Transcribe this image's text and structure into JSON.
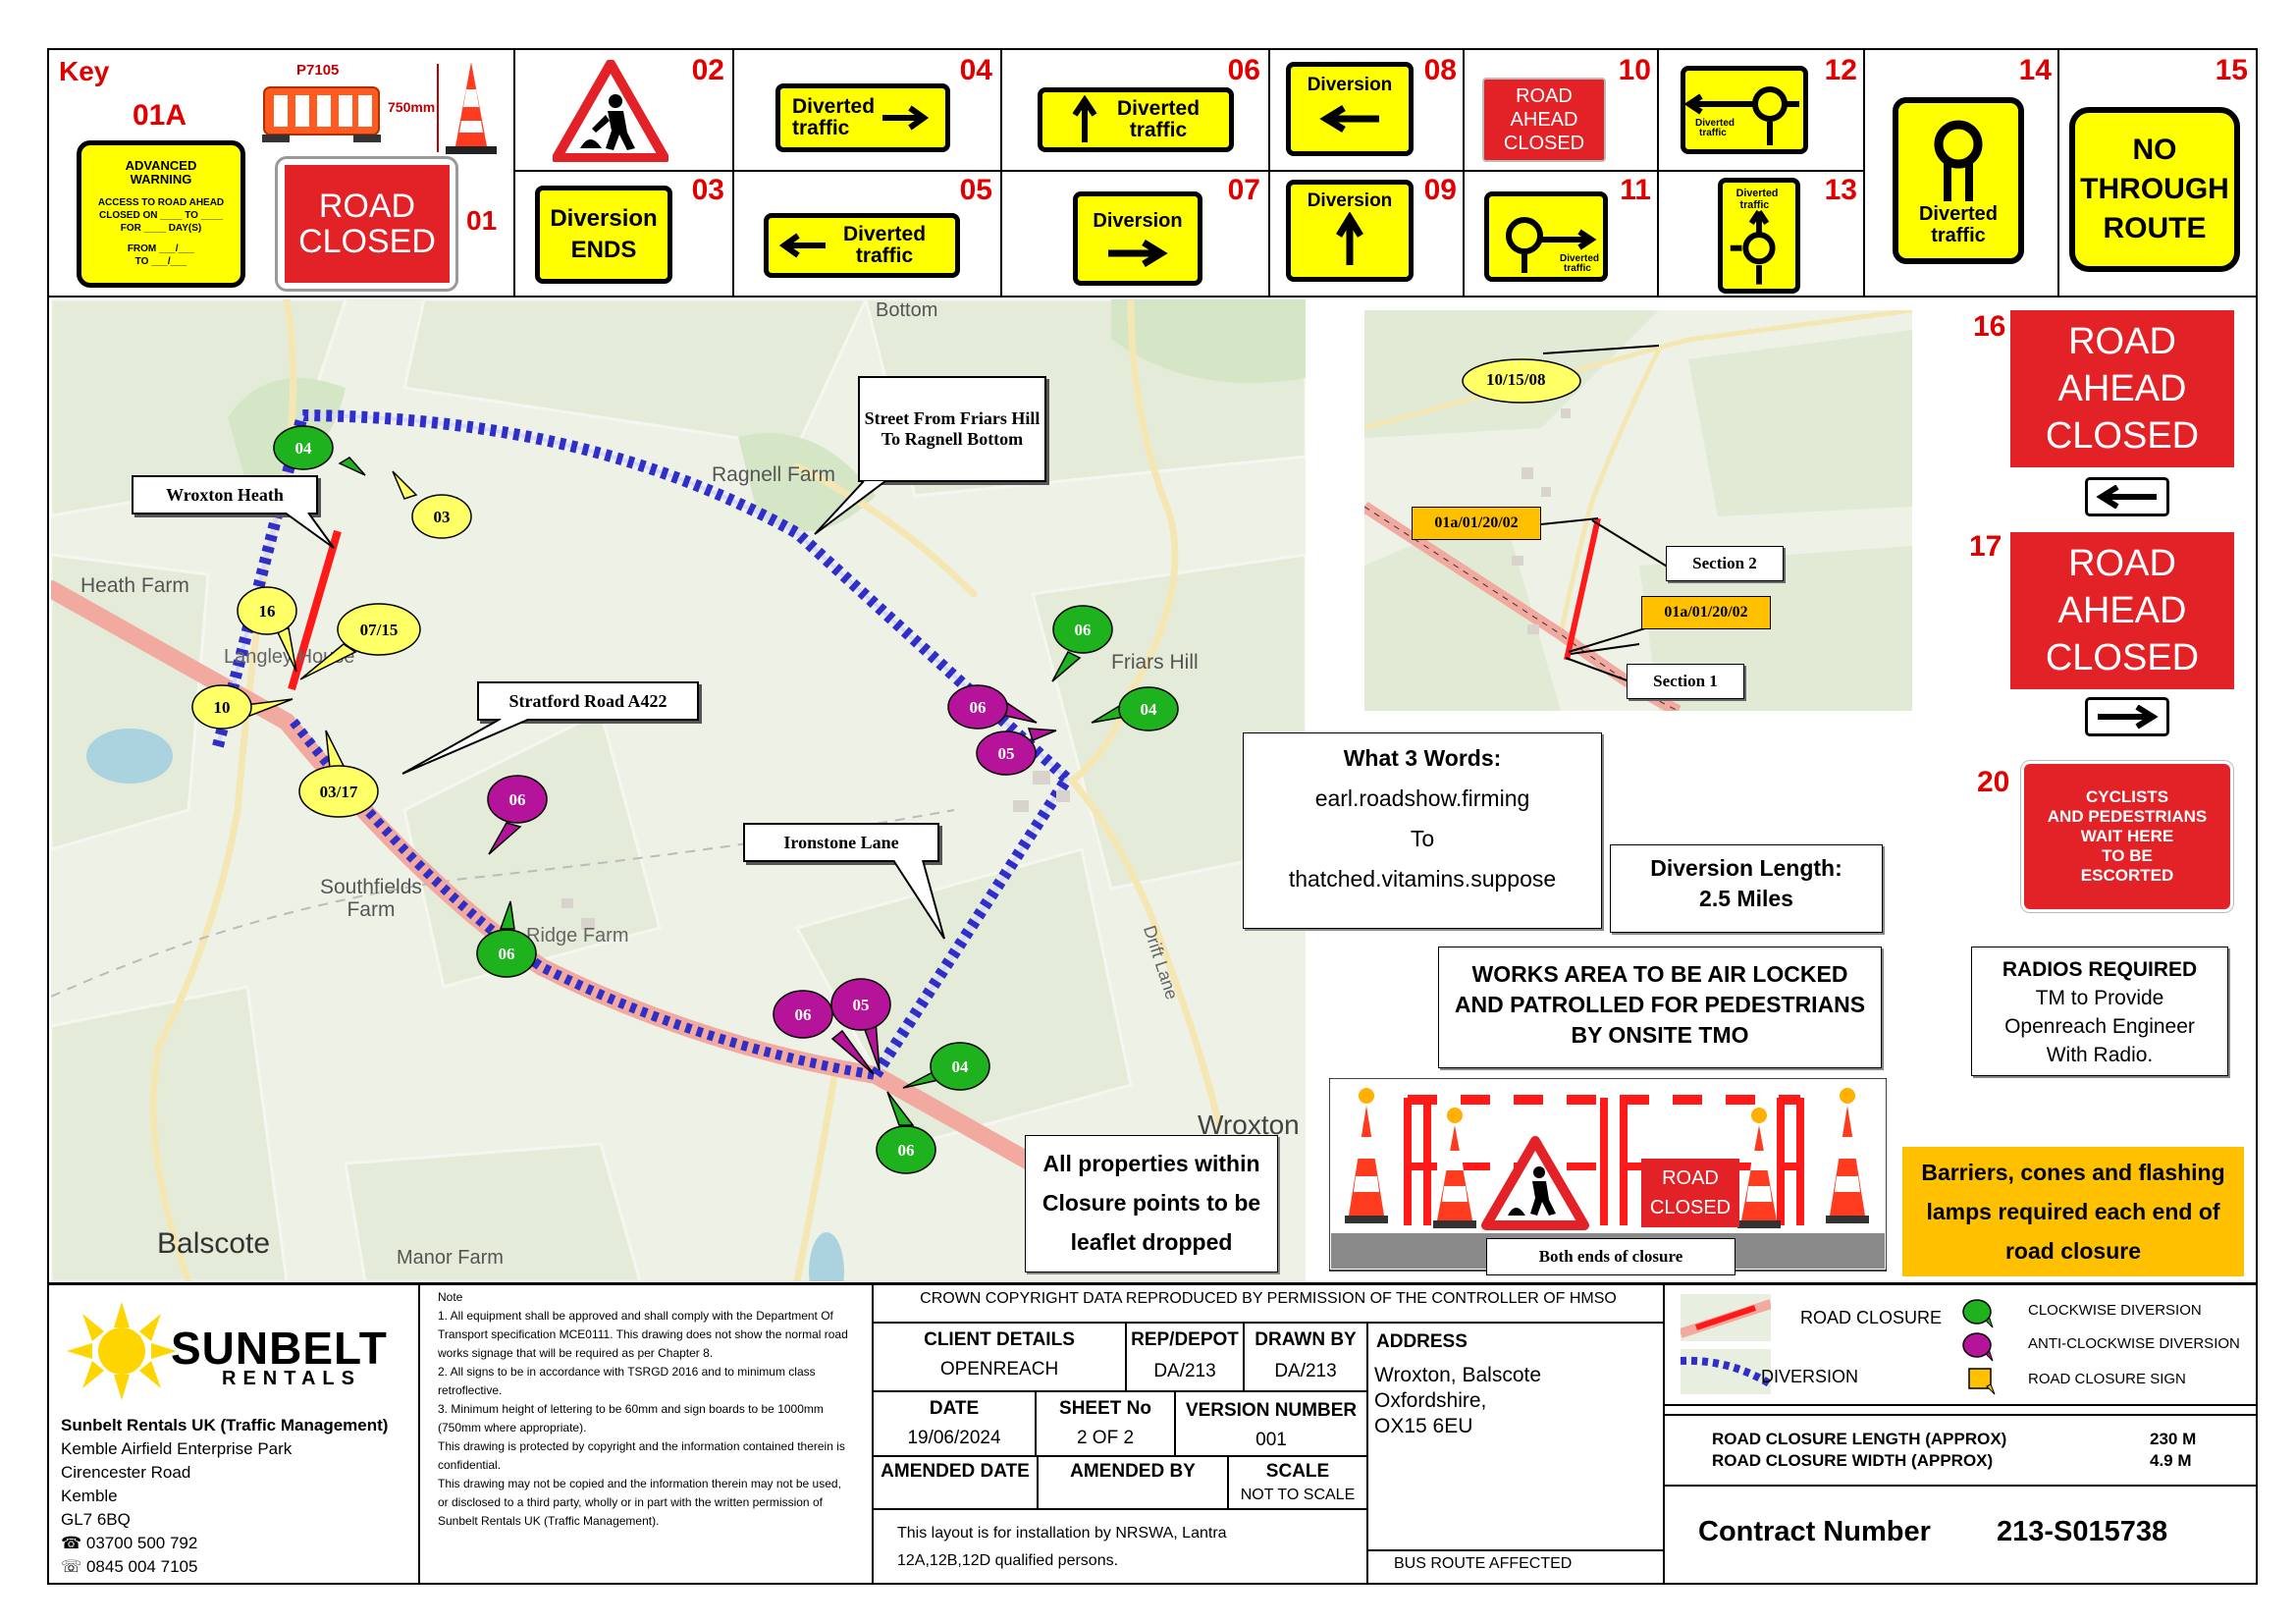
{
  "key": {
    "title": "Key",
    "code_01a": "01A",
    "p7105": "P7105",
    "size_750": "750mm",
    "advanced_warning": {
      "title": "ADVANCED WARNING",
      "line1": "ACCESS TO ROAD AHEAD",
      "line2": "CLOSED ON ____ TO ____",
      "line3": "FOR ____ DAY(S)",
      "line4": "FROM ___/___",
      "line5": "TO ___/___"
    },
    "road_closed_1": "ROAD",
    "road_closed_2": "CLOSED",
    "num_01": "01"
  },
  "signs": {
    "n02": "02",
    "n03": "03",
    "n04": "04",
    "n05": "05",
    "n06": "06",
    "n07": "07",
    "n08": "08",
    "n09": "09",
    "n10": "10",
    "n11": "11",
    "n12": "12",
    "n13": "13",
    "n14": "14",
    "n15": "15",
    "n16": "16",
    "n17": "17",
    "n20": "20",
    "diversion_ends_1": "Diversion",
    "diversion_ends_2": "ENDS",
    "diverted_1": "Diverted",
    "diverted_2": "traffic",
    "diversion": "Diversion",
    "road_ahead_closed_1": "ROAD",
    "road_ahead_closed_2": "AHEAD",
    "road_ahead_closed_3": "CLOSED",
    "small_diverted": "Diverted traffic",
    "no_through_1": "NO",
    "no_through_2": "THROUGH",
    "no_through_3": "ROUTE",
    "cyclists_1": "CYCLISTS",
    "cyclists_2": "AND PEDESTRIANS",
    "cyclists_3": "WAIT HERE",
    "cyclists_4": "TO BE",
    "cyclists_5": "ESCORTED"
  },
  "map": {
    "places": {
      "bottom": "Bottom",
      "ragnell_farm": "Ragnell Farm",
      "heath_farm": "Heath Farm",
      "langley_house": "Langley House",
      "friars_hill": "Friars Hill",
      "southfields_1": "Southfields",
      "southfields_2": "Farm",
      "ridge_farm": "Ridge Farm",
      "drift_lane": "Drift Lane",
      "wroxton": "Wroxton",
      "balscote": "Balscote",
      "manor_farm": "Manor Farm"
    },
    "callouts": {
      "wroxton_heath": "Wroxton Heath",
      "street_from": "Street From Friars Hill To Ragnell Bottom",
      "stratford_road": "Stratford Road A422",
      "ironstone_lane": "Ironstone Lane"
    },
    "markers": {
      "g04a": "04",
      "y03": "03",
      "y16": "16",
      "y0715": "07/15",
      "y10": "10",
      "y0317": "03/17",
      "p06a": "06",
      "g06a": "06",
      "g06b": "06",
      "p06b": "06",
      "p05a": "05",
      "p06c": "06",
      "p05b": "05",
      "g04b": "04",
      "g06c": "06",
      "g04c": "04"
    }
  },
  "inset": {
    "y101508": "10/15/08",
    "tag1": "01a/01/20/02",
    "tag2": "01a/01/20/02",
    "section2": "Section 2",
    "section1": "Section 1"
  },
  "notes": {
    "w3w_title": "What 3 Words:",
    "w3w_1": "earl.roadshow.firming",
    "w3w_to": "To",
    "w3w_2": "thatched.vitamins.suppose",
    "div_len_1": "Diversion Length:",
    "div_len_2": "2.5 Miles",
    "works_area": "WORKS AREA TO BE AIR LOCKED AND PATROLLED FOR PEDESTRIANS BY ONSITE TMO",
    "radios_title": "RADIOS REQUIRED",
    "radios_body": "TM to Provide Openreach Engineer With Radio.",
    "leaflet": "All properties within Closure points to be leaflet dropped",
    "both_ends": "Both ends of closure",
    "barriers": "Barriers, cones and flashing lamps required each end of road closure",
    "rc_sign_1": "ROAD",
    "rc_sign_2": "CLOSED"
  },
  "title_block": {
    "company_name": "SUNBELT",
    "company_sub": "RENTALS",
    "address": [
      "Sunbelt Rentals UK (Traffic Management)",
      "Kemble Airfield Enterprise Park",
      "Cirencester Road",
      "Kemble",
      "GL7 6BQ",
      "☎ 03700 500 792",
      "☏ 0845 004 7105"
    ],
    "note_title": "Note",
    "notes": [
      "1. All equipment shall be approved and shall comply with the Department Of Transport specification MCE0111. This drawing does not show the normal road works signage that will be required as per Chapter 8.",
      "2. All signs to be in accordance with TSRGD 2016 and to minimum class retroflective.",
      "3. Minimum height of lettering to be 60mm and sign boards to be 1000mm (750mm where appropriate).",
      "This drawing is protected by copyright and the information contained therein is confidential.",
      "This drawing may not be copied and the information therein may not be used, or disclosed to a third party, wholly or in part with the written permission of Sunbelt Rentals UK (Traffic Management)."
    ],
    "crown": "CROWN COPYRIGHT DATA REPRODUCED BY PERMISSION OF THE CONTROLLER OF HMSO",
    "client_label": "CLIENT DETAILS",
    "client_value": "OPENREACH",
    "rep_label": "REP/DEPOT",
    "rep_value": "DA/213",
    "drawn_label": "DRAWN BY",
    "drawn_value": "DA/213",
    "date_label": "DATE",
    "date_value": "19/06/2024",
    "sheet_label": "SHEET No",
    "sheet_value": "2 OF 2",
    "version_label": "VERSION NUMBER",
    "version_value": "001",
    "amended_date_label": "AMENDED DATE",
    "amended_by_label": "AMENDED BY",
    "scale_label": "SCALE",
    "scale_value": "NOT TO SCALE",
    "layout_note": "This layout is for installation by NRSWA, Lantra 12A,12B,12D qualified persons.",
    "address_label": "ADDRESS",
    "address_lines": [
      "Wroxton, Balscote",
      "Oxfordshire,",
      "OX15 6EU"
    ],
    "bus_route": "BUS ROUTE AFFECTED",
    "legend_road_closure": "ROAD CLOSURE",
    "legend_diversion": "DIVERSION",
    "legend_clockwise": "CLOCKWISE DIVERSION",
    "legend_anticlockwise": "ANTI-CLOCKWISE DIVERSION",
    "legend_sign": "ROAD CLOSURE SIGN",
    "closure_length_label": "ROAD CLOSURE LENGTH (APPROX)",
    "closure_length_value": "230 M",
    "closure_width_label": "ROAD CLOSURE WIDTH (APPROX)",
    "closure_width_value": "4.9 M",
    "contract_label": "Contract Number",
    "contract_value": "213-S015738"
  },
  "colors": {
    "sign_yellow": "#ffff00",
    "sign_red": "#e32227",
    "clockwise_green": "#1fb21f",
    "anticlockwise_purple": "#b5139a",
    "closure_sign_yellow": "#ffff66",
    "orange_note": "#ffc000",
    "closure_red": "#ff0000",
    "diversion_blue": "#3333cc"
  }
}
